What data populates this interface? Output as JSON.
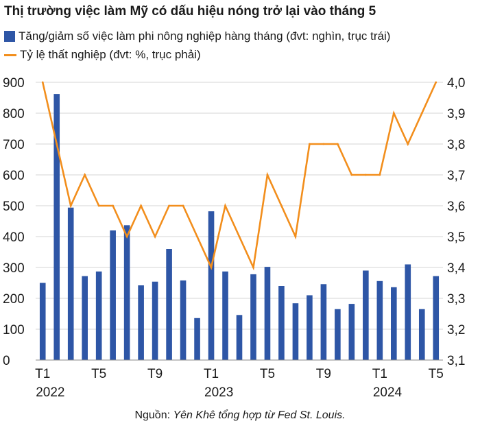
{
  "chart_data": {
    "type": "bar",
    "title": "Thị trường việc làm Mỹ có dấu hiệu nóng trở lại vào tháng 5",
    "legend": {
      "bars": "Tăng/giảm số việc làm phi nông nghiệp hàng tháng (đvt: nghìn, trục trái)",
      "line": "Tỷ lệ thất nghiệp (đvt: %, trục phải)"
    },
    "months": [
      "T1",
      "T2",
      "T3",
      "T4",
      "T5",
      "T6",
      "T7",
      "T8",
      "T9",
      "T10",
      "T11",
      "T12",
      "T1",
      "T2",
      "T3",
      "T4",
      "T5",
      "T6",
      "T7",
      "T8",
      "T9",
      "T10",
      "T11",
      "T12",
      "T1",
      "T2",
      "T3",
      "T4",
      "T5"
    ],
    "x_tick_labels": [
      "T1",
      "",
      "",
      "",
      "T5",
      "",
      "",
      "",
      "T9",
      "",
      "",
      "",
      "T1",
      "",
      "",
      "",
      "T5",
      "",
      "",
      "",
      "T9",
      "",
      "",
      "",
      "T1",
      "",
      "",
      "",
      "T5"
    ],
    "x_year_labels": [
      {
        "index": 0,
        "label": "2022"
      },
      {
        "index": 12,
        "label": "2023"
      },
      {
        "index": 24,
        "label": "2024"
      }
    ],
    "series": [
      {
        "name": "Tăng/giảm số việc làm phi nông nghiệp hàng tháng (đvt: nghìn, trục trái)",
        "kind": "bar",
        "axis": "left",
        "color": "#2e56a6",
        "values": [
          250,
          862,
          494,
          272,
          287,
          420,
          437,
          242,
          254,
          360,
          258,
          136,
          482,
          287,
          146,
          278,
          302,
          240,
          184,
          210,
          246,
          165,
          182,
          290,
          256,
          236,
          310,
          165,
          272
        ]
      },
      {
        "name": "Tỷ lệ thất nghiệp (đvt: %, trục phải)",
        "kind": "line",
        "axis": "right",
        "color": "#f28e1c",
        "values": [
          4.0,
          3.8,
          3.6,
          3.7,
          3.6,
          3.6,
          3.5,
          3.6,
          3.5,
          3.6,
          3.6,
          3.5,
          3.4,
          3.6,
          3.5,
          3.4,
          3.7,
          3.6,
          3.5,
          3.8,
          3.8,
          3.8,
          3.7,
          3.7,
          3.7,
          3.9,
          3.8,
          3.9,
          4.0
        ]
      }
    ],
    "left_axis": {
      "ylim": [
        0,
        900
      ],
      "ticks": [
        "0",
        "100",
        "200",
        "300",
        "400",
        "500",
        "600",
        "700",
        "800",
        "900"
      ]
    },
    "right_axis": {
      "ylim": [
        3.1,
        4.0
      ],
      "ticks": [
        "3,1",
        "3,2",
        "3,3",
        "3,4",
        "3,5",
        "3,6",
        "3,7",
        "3,8",
        "3,9",
        "4,0"
      ]
    },
    "grid": true
  },
  "source": {
    "prefix": "Nguồn: ",
    "text": "Yên Khê tổng hợp từ Fed St. Louis."
  }
}
